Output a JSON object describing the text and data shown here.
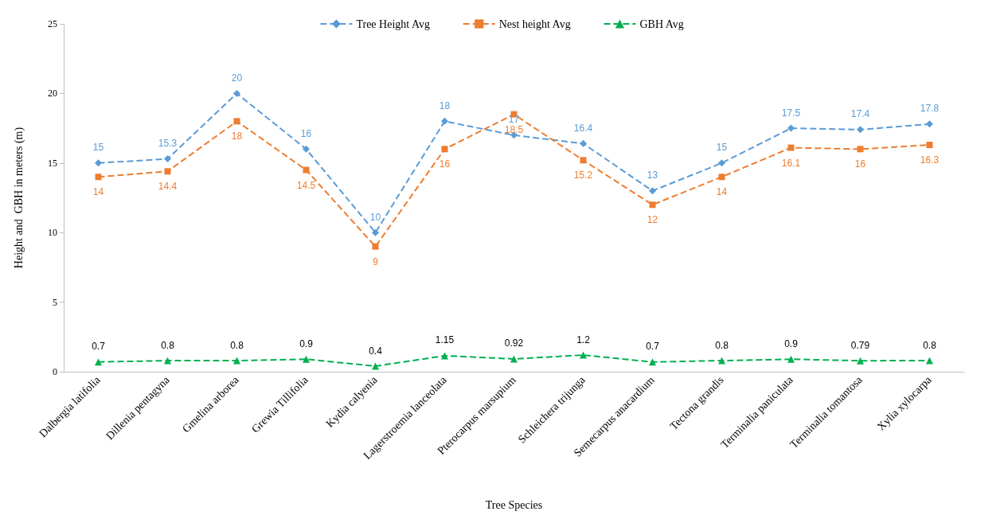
{
  "chart_data": {
    "type": "line",
    "xlabel": "Tree Species",
    "ylabel": "Height and  GBH in meters (m)",
    "categories": [
      "Dalbergia latifolia",
      "Dillenia pentagyna",
      "Gmelina arborea",
      "Grewia Tillifolia",
      "Kydia calyenia",
      "Lagerstroemia lanceolata",
      "Pterocarpus marsupium",
      "Schleichera trijunga",
      "Semecarpus anacardium",
      "Tectona grandis",
      "Terminalia paniculata",
      "Terminalia tomantosa",
      "Xylia xylocarpa"
    ],
    "series": [
      {
        "name": "Tree Height Avg",
        "color": "#5b9bd5",
        "marker": "diamond",
        "values": [
          15,
          15.3,
          20,
          16,
          10,
          18,
          17,
          16.4,
          13,
          15,
          17.5,
          17.4,
          17.8
        ]
      },
      {
        "name": "Nest height Avg",
        "color": "#ed7d31",
        "marker": "square",
        "values": [
          14,
          14.4,
          18,
          14.5,
          9,
          16,
          18.5,
          15.2,
          12,
          14,
          16.1,
          16,
          16.3
        ]
      },
      {
        "name": "GBH Avg",
        "color": "#00b050",
        "marker": "triangle",
        "values": [
          0.7,
          0.8,
          0.8,
          0.9,
          0.4,
          1.15,
          0.92,
          1.2,
          0.7,
          0.8,
          0.9,
          0.79,
          0.8
        ]
      }
    ],
    "ylim": [
      0,
      25
    ],
    "yticks": [
      0,
      5,
      10,
      15,
      20,
      25
    ],
    "grid": false,
    "legend": "top",
    "line_style": "dashed",
    "data_labels": true
  }
}
